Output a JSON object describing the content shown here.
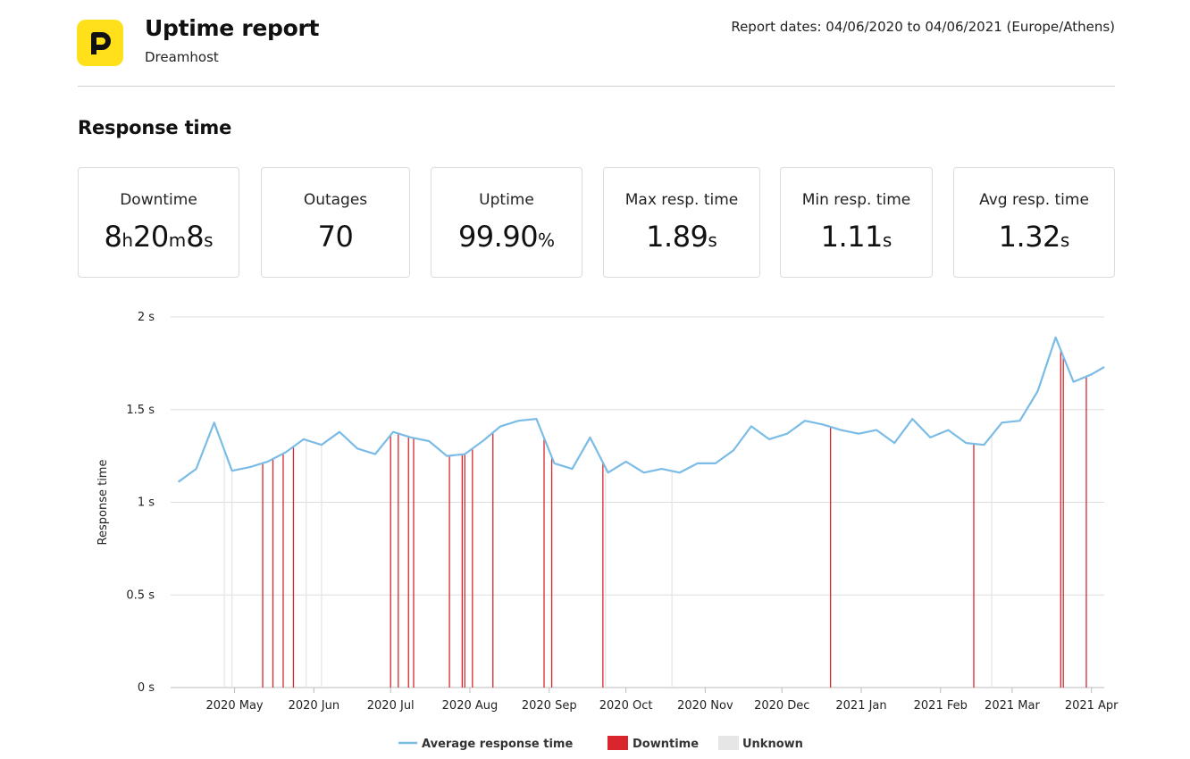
{
  "header": {
    "logo_letter": "P",
    "title": "Uptime report",
    "subtitle": "Dreamhost",
    "report_dates": "Report dates: 04/06/2020 to 04/06/2021 (Europe/Athens)"
  },
  "section_title": "Response time",
  "stats": [
    {
      "label": "Downtime",
      "parts": [
        {
          "n": "8",
          "u": "h"
        },
        {
          "n": "20",
          "u": "m"
        },
        {
          "n": "8",
          "u": "s"
        }
      ]
    },
    {
      "label": "Outages",
      "parts": [
        {
          "n": "70",
          "u": ""
        }
      ]
    },
    {
      "label": "Uptime",
      "parts": [
        {
          "n": "99.90",
          "u": "%"
        }
      ]
    },
    {
      "label": "Max resp. time",
      "parts": [
        {
          "n": "1.89",
          "u": "s"
        }
      ]
    },
    {
      "label": "Min resp. time",
      "parts": [
        {
          "n": "1.11",
          "u": "s"
        }
      ]
    },
    {
      "label": "Avg resp. time",
      "parts": [
        {
          "n": "1.32",
          "u": "s"
        }
      ]
    }
  ],
  "colors": {
    "line": "#7bbce6",
    "downtime": "#d9262c",
    "unknown": "#e6e6e6",
    "grid": "#dddddd",
    "logo": "#ffe01b"
  },
  "chart_data": {
    "type": "line",
    "ylabel": "Response time",
    "ylim": [
      0,
      2
    ],
    "y_ticks": [
      {
        "value": 0,
        "label": "0 s"
      },
      {
        "value": 0.5,
        "label": "0.5 s"
      },
      {
        "value": 1,
        "label": "1 s"
      },
      {
        "value": 1.5,
        "label": "1.5 s"
      },
      {
        "value": 2,
        "label": "2 s"
      }
    ],
    "x_range": [
      "2020-04-06",
      "2021-04-06"
    ],
    "x_ticks": [
      {
        "date": "2020-05-01",
        "label": "2020 May"
      },
      {
        "date": "2020-06-01",
        "label": "2020 Jun"
      },
      {
        "date": "2020-07-01",
        "label": "2020 Jul"
      },
      {
        "date": "2020-08-01",
        "label": "2020 Aug"
      },
      {
        "date": "2020-09-01",
        "label": "2020 Sep"
      },
      {
        "date": "2020-10-01",
        "label": "2020 Oct"
      },
      {
        "date": "2020-11-01",
        "label": "2020 Nov"
      },
      {
        "date": "2020-12-01",
        "label": "2020 Dec"
      },
      {
        "date": "2021-01-01",
        "label": "2021 Jan"
      },
      {
        "date": "2021-02-01",
        "label": "2021 Feb"
      },
      {
        "date": "2021-03-01",
        "label": "2021 Mar"
      },
      {
        "date": "2021-04-01",
        "label": "2021 Apr"
      }
    ],
    "grid": true,
    "legend_position": "bottom",
    "legend": [
      "Average response time",
      "Downtime",
      "Unknown"
    ],
    "series": [
      {
        "name": "Average response time",
        "points": [
          {
            "x": "2020-04-09",
            "y": 1.11
          },
          {
            "x": "2020-04-16",
            "y": 1.18
          },
          {
            "x": "2020-04-23",
            "y": 1.43
          },
          {
            "x": "2020-04-30",
            "y": 1.17
          },
          {
            "x": "2020-05-07",
            "y": 1.19
          },
          {
            "x": "2020-05-14",
            "y": 1.22
          },
          {
            "x": "2020-05-21",
            "y": 1.27
          },
          {
            "x": "2020-05-28",
            "y": 1.34
          },
          {
            "x": "2020-06-04",
            "y": 1.31
          },
          {
            "x": "2020-06-11",
            "y": 1.38
          },
          {
            "x": "2020-06-18",
            "y": 1.29
          },
          {
            "x": "2020-06-25",
            "y": 1.26
          },
          {
            "x": "2020-07-02",
            "y": 1.38
          },
          {
            "x": "2020-07-09",
            "y": 1.35
          },
          {
            "x": "2020-07-16",
            "y": 1.33
          },
          {
            "x": "2020-07-23",
            "y": 1.25
          },
          {
            "x": "2020-07-30",
            "y": 1.26
          },
          {
            "x": "2020-08-06",
            "y": 1.33
          },
          {
            "x": "2020-08-13",
            "y": 1.41
          },
          {
            "x": "2020-08-20",
            "y": 1.44
          },
          {
            "x": "2020-08-27",
            "y": 1.45
          },
          {
            "x": "2020-09-03",
            "y": 1.21
          },
          {
            "x": "2020-09-10",
            "y": 1.18
          },
          {
            "x": "2020-09-17",
            "y": 1.35
          },
          {
            "x": "2020-09-24",
            "y": 1.16
          },
          {
            "x": "2020-10-01",
            "y": 1.22
          },
          {
            "x": "2020-10-08",
            "y": 1.16
          },
          {
            "x": "2020-10-15",
            "y": 1.18
          },
          {
            "x": "2020-10-22",
            "y": 1.16
          },
          {
            "x": "2020-10-29",
            "y": 1.21
          },
          {
            "x": "2020-11-05",
            "y": 1.21
          },
          {
            "x": "2020-11-12",
            "y": 1.28
          },
          {
            "x": "2020-11-19",
            "y": 1.41
          },
          {
            "x": "2020-11-26",
            "y": 1.34
          },
          {
            "x": "2020-12-03",
            "y": 1.37
          },
          {
            "x": "2020-12-10",
            "y": 1.44
          },
          {
            "x": "2020-12-17",
            "y": 1.42
          },
          {
            "x": "2020-12-24",
            "y": 1.39
          },
          {
            "x": "2020-12-31",
            "y": 1.37
          },
          {
            "x": "2021-01-07",
            "y": 1.39
          },
          {
            "x": "2021-01-14",
            "y": 1.32
          },
          {
            "x": "2021-01-21",
            "y": 1.45
          },
          {
            "x": "2021-01-28",
            "y": 1.35
          },
          {
            "x": "2021-02-04",
            "y": 1.39
          },
          {
            "x": "2021-02-11",
            "y": 1.32
          },
          {
            "x": "2021-02-18",
            "y": 1.31
          },
          {
            "x": "2021-02-25",
            "y": 1.43
          },
          {
            "x": "2021-03-04",
            "y": 1.44
          },
          {
            "x": "2021-03-11",
            "y": 1.6
          },
          {
            "x": "2021-03-18",
            "y": 1.89
          },
          {
            "x": "2021-03-25",
            "y": 1.65
          },
          {
            "x": "2021-04-01",
            "y": 1.69
          },
          {
            "x": "2021-04-06",
            "y": 1.73
          }
        ]
      }
    ],
    "downtime_events": [
      "2020-05-12",
      "2020-05-16",
      "2020-05-20",
      "2020-05-24",
      "2020-07-01",
      "2020-07-04",
      "2020-07-08",
      "2020-07-10",
      "2020-07-24",
      "2020-07-29",
      "2020-07-30",
      "2020-08-02",
      "2020-08-10",
      "2020-08-30",
      "2020-09-02",
      "2020-09-22",
      "2020-12-20",
      "2021-02-14",
      "2021-03-20",
      "2021-03-21",
      "2021-03-30"
    ],
    "unknown_events": [
      "2020-04-27",
      "2020-04-30",
      "2020-05-29",
      "2020-06-04",
      "2020-09-23",
      "2020-10-19",
      "2021-02-21"
    ]
  }
}
